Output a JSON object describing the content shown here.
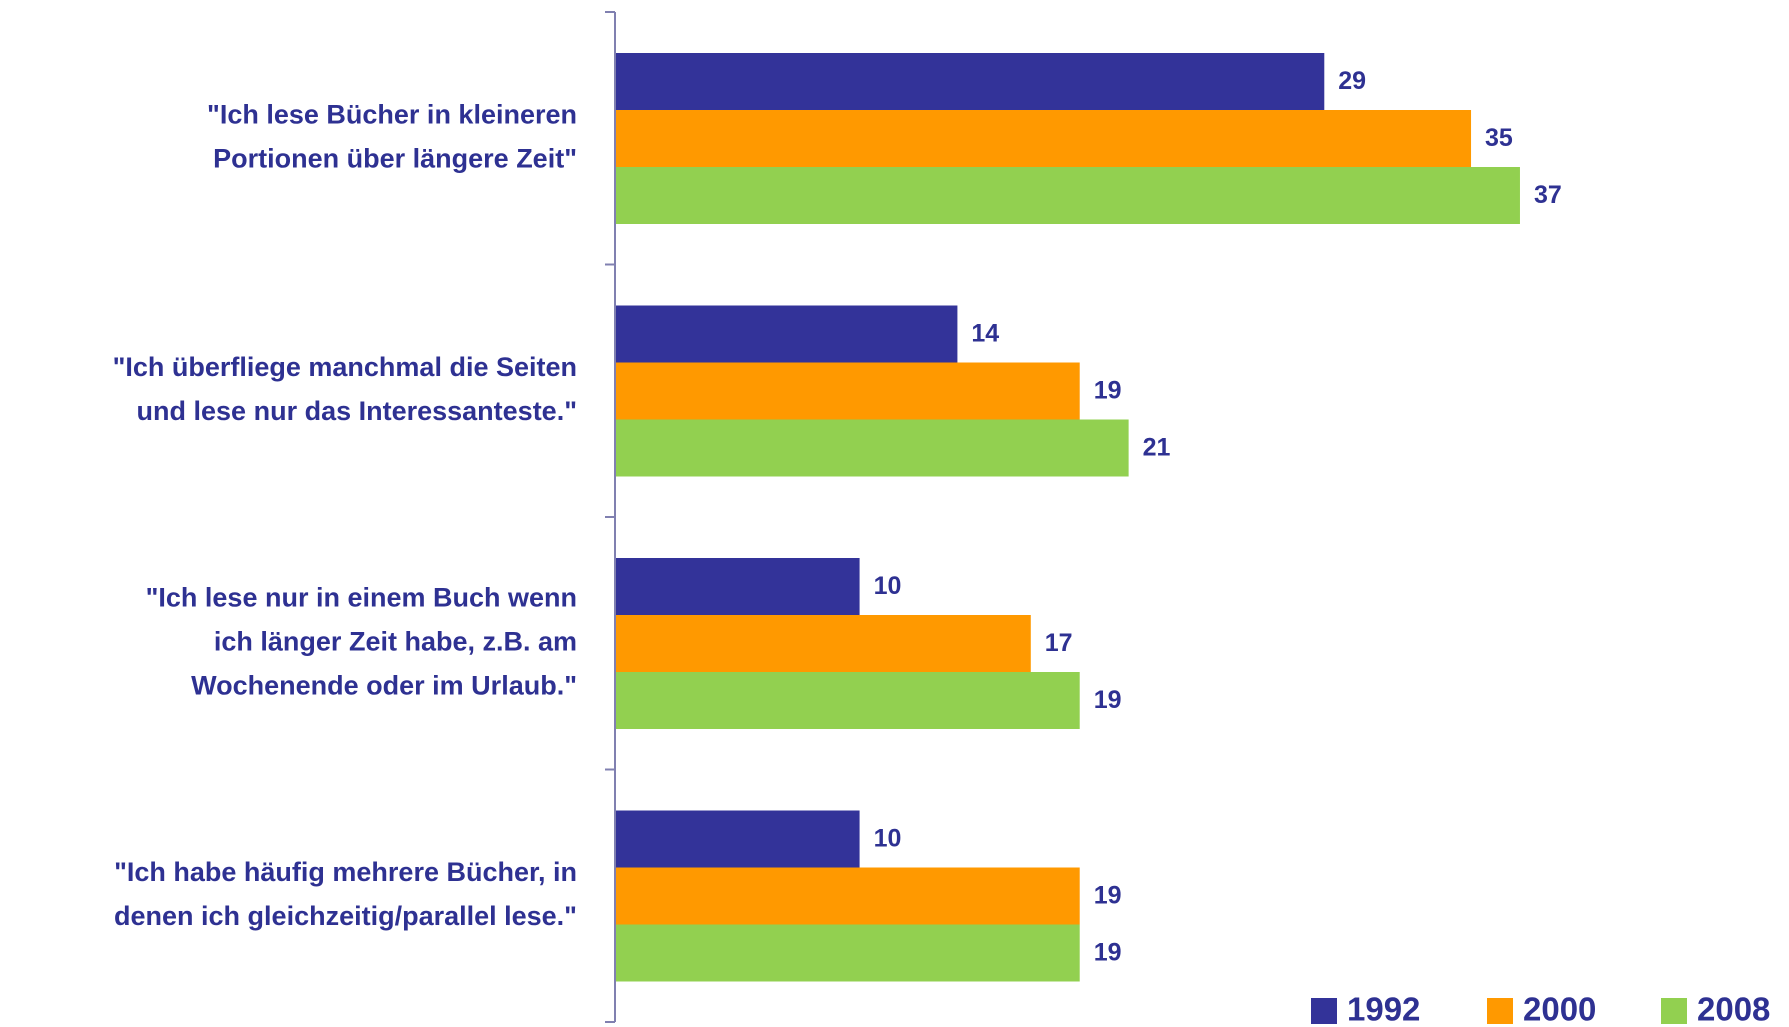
{
  "chart_data": {
    "type": "barh",
    "categories": [
      [
        "\"Ich lese Bücher in kleineren",
        "Portionen über längere Zeit\""
      ],
      [
        "\"Ich überfliege manchmal die Seiten",
        "und lese nur das Interessanteste.\""
      ],
      [
        "\"Ich lese nur in einem Buch wenn",
        "ich länger Zeit habe, z.B. am",
        "Wochenende oder im Urlaub.\""
      ],
      [
        "\"Ich habe häufig mehrere Bücher, in",
        "denen ich gleichzeitig/parallel lese.\""
      ]
    ],
    "series": [
      {
        "name": "1992",
        "color": "#333399",
        "values": [
          29,
          14,
          10,
          10
        ]
      },
      {
        "name": "2000",
        "color": "#ff9900",
        "values": [
          35,
          19,
          17,
          19
        ]
      },
      {
        "name": "2008",
        "color": "#92d050",
        "values": [
          37,
          21,
          19,
          19
        ]
      }
    ],
    "xlim": [
      0,
      48
    ],
    "legend": "bottom-right"
  }
}
